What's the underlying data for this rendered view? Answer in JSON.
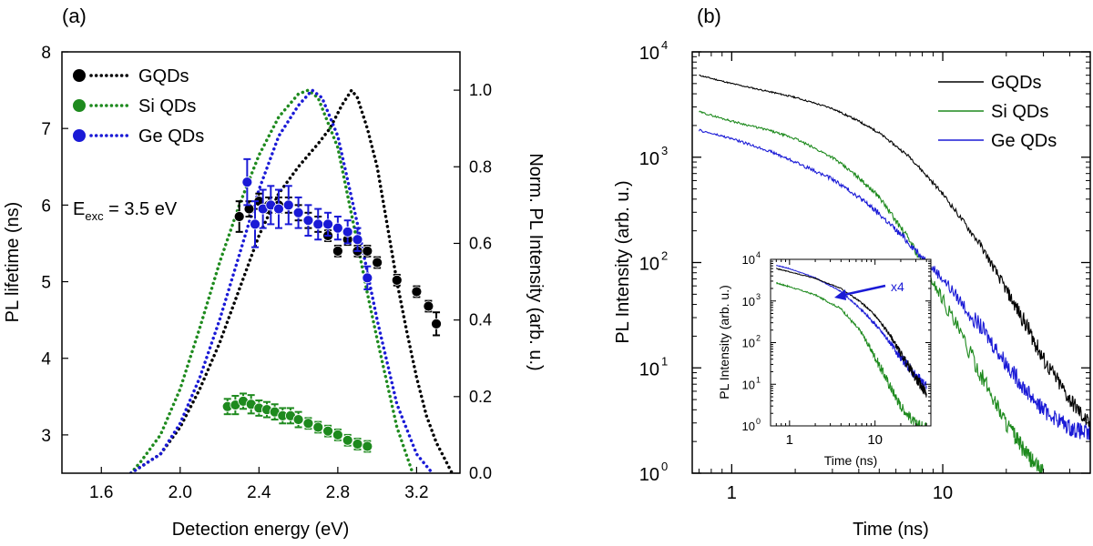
{
  "chart_data": [
    {
      "panel_label": "(a)",
      "type": "scatter",
      "xlabel": "Detection energy (eV)",
      "ylabel": "PL lifetime (ns)",
      "y2label": "Norm. PL Intensity (arb. u.)",
      "xlim": [
        1.4,
        3.42
      ],
      "ylim": [
        2.5,
        8.0
      ],
      "y2lim": [
        0.0,
        1.1
      ],
      "xticks": [
        "1.6",
        "2.0",
        "2.4",
        "2.8",
        "3.2"
      ],
      "yticks": [
        "3",
        "4",
        "5",
        "6",
        "7",
        "8"
      ],
      "y2ticks": [
        "0.0",
        "0.2",
        "0.4",
        "0.6",
        "0.8",
        "1.0"
      ],
      "annotation": {
        "prefix": "E",
        "subscript": "exc",
        "suffix": " = 3.5 eV"
      },
      "legend": [
        "GQDs",
        "Si QDs",
        "Ge QDs"
      ],
      "legend_position": "top-left",
      "colors": {
        "GQDs": "#000000",
        "Si QDs": "#1e8a1e",
        "Ge QDs": "#1a1ad6"
      },
      "series": [
        {
          "name": "GQDs",
          "kind": "lifetime",
          "points": [
            [
              2.3,
              5.85,
              0.2
            ],
            [
              2.35,
              5.95,
              0.1
            ],
            [
              2.4,
              6.05,
              0.1
            ],
            [
              2.45,
              6.0,
              0.1
            ],
            [
              2.5,
              6.0,
              0.1
            ],
            [
              2.55,
              6.0,
              0.1
            ],
            [
              2.6,
              5.9,
              0.1
            ],
            [
              2.65,
              5.8,
              0.1
            ],
            [
              2.7,
              5.75,
              0.1
            ],
            [
              2.75,
              5.6,
              0.07
            ],
            [
              2.8,
              5.4,
              0.07
            ],
            [
              2.85,
              5.55,
              0.07
            ],
            [
              2.9,
              5.4,
              0.07
            ],
            [
              2.95,
              5.4,
              0.07
            ],
            [
              3.0,
              5.25,
              0.07
            ],
            [
              3.1,
              5.02,
              0.07
            ],
            [
              3.2,
              4.87,
              0.07
            ],
            [
              3.26,
              4.68,
              0.07
            ],
            [
              3.3,
              4.45,
              0.15
            ]
          ]
        },
        {
          "name": "Si QDs",
          "kind": "lifetime",
          "points": [
            [
              2.24,
              3.37,
              0.1
            ],
            [
              2.28,
              3.39,
              0.12
            ],
            [
              2.32,
              3.44,
              0.1
            ],
            [
              2.36,
              3.4,
              0.12
            ],
            [
              2.4,
              3.35,
              0.1
            ],
            [
              2.44,
              3.33,
              0.1
            ],
            [
              2.48,
              3.3,
              0.1
            ],
            [
              2.52,
              3.25,
              0.1
            ],
            [
              2.56,
              3.25,
              0.1
            ],
            [
              2.6,
              3.2,
              0.1
            ],
            [
              2.65,
              3.15,
              0.07
            ],
            [
              2.7,
              3.1,
              0.07
            ],
            [
              2.75,
              3.05,
              0.07
            ],
            [
              2.8,
              3.0,
              0.07
            ],
            [
              2.85,
              2.93,
              0.07
            ],
            [
              2.9,
              2.88,
              0.07
            ],
            [
              2.95,
              2.85,
              0.07
            ]
          ]
        },
        {
          "name": "Ge QDs",
          "kind": "lifetime",
          "points": [
            [
              2.34,
              6.3,
              0.3
            ],
            [
              2.38,
              5.75,
              0.3
            ],
            [
              2.42,
              5.95,
              0.25
            ],
            [
              2.46,
              6.0,
              0.25
            ],
            [
              2.5,
              5.95,
              0.25
            ],
            [
              2.55,
              6.0,
              0.25
            ],
            [
              2.6,
              5.9,
              0.2
            ],
            [
              2.65,
              5.8,
              0.2
            ],
            [
              2.7,
              5.75,
              0.2
            ],
            [
              2.75,
              5.75,
              0.15
            ],
            [
              2.8,
              5.7,
              0.15
            ],
            [
              2.85,
              5.65,
              0.15
            ],
            [
              2.9,
              5.55,
              0.15
            ],
            [
              2.95,
              5.05,
              0.15
            ]
          ]
        },
        {
          "name": "GQDs",
          "kind": "norm_pl_dotted",
          "x": [
            1.75,
            1.9,
            2.0,
            2.1,
            2.2,
            2.3,
            2.4,
            2.5,
            2.6,
            2.7,
            2.76,
            2.82,
            2.87,
            2.9,
            2.95,
            3.0,
            3.05,
            3.1,
            3.15,
            3.2,
            3.25,
            3.3,
            3.35,
            3.38
          ],
          "y": [
            0.0,
            0.05,
            0.12,
            0.22,
            0.34,
            0.48,
            0.62,
            0.73,
            0.8,
            0.86,
            0.9,
            0.96,
            1.0,
            0.98,
            0.9,
            0.8,
            0.65,
            0.5,
            0.37,
            0.25,
            0.15,
            0.08,
            0.03,
            0.0
          ]
        },
        {
          "name": "Si QDs",
          "kind": "norm_pl_dotted",
          "x": [
            1.75,
            1.8,
            1.9,
            2.0,
            2.1,
            2.2,
            2.3,
            2.4,
            2.5,
            2.6,
            2.65,
            2.7,
            2.8,
            2.9,
            2.95,
            3.0,
            3.1,
            3.18
          ],
          "y": [
            0.0,
            0.03,
            0.1,
            0.22,
            0.38,
            0.55,
            0.7,
            0.83,
            0.93,
            0.99,
            1.0,
            0.98,
            0.85,
            0.6,
            0.47,
            0.35,
            0.12,
            0.0
          ]
        },
        {
          "name": "Ge QDs",
          "kind": "norm_pl_dotted",
          "x": [
            1.75,
            1.9,
            2.0,
            2.1,
            2.2,
            2.3,
            2.4,
            2.5,
            2.6,
            2.67,
            2.72,
            2.8,
            2.9,
            3.0,
            3.1,
            3.2,
            3.28
          ],
          "y": [
            0.0,
            0.05,
            0.13,
            0.25,
            0.4,
            0.57,
            0.74,
            0.88,
            0.96,
            1.0,
            0.98,
            0.88,
            0.65,
            0.4,
            0.18,
            0.05,
            0.0
          ]
        }
      ]
    },
    {
      "panel_label": "(b)",
      "type": "line",
      "xlabel": "Time (ns)",
      "ylabel": "PL Intensity (arb. u.)",
      "xscale": "log",
      "yscale": "log",
      "xlim": [
        0.65,
        50
      ],
      "ylim": [
        1,
        10000
      ],
      "xticks": [
        {
          "v": 1,
          "l": "1"
        },
        {
          "v": 10,
          "l": "10"
        }
      ],
      "yticks": [
        {
          "v": 1,
          "b": "10",
          "e": "0"
        },
        {
          "v": 10,
          "b": "10",
          "e": "1"
        },
        {
          "v": 100,
          "b": "10",
          "e": "2"
        },
        {
          "v": 1000,
          "b": "10",
          "e": "3"
        },
        {
          "v": 10000,
          "b": "10",
          "e": "4"
        }
      ],
      "legend": [
        "GQDs",
        "Si QDs",
        "Ge QDs"
      ],
      "legend_position": "top-right",
      "colors": {
        "GQDs": "#000000",
        "Si QDs": "#1e8a1e",
        "Ge QDs": "#1a1ad6"
      },
      "series": [
        {
          "name": "GQDs",
          "x": [
            0.7,
            1,
            1.5,
            2,
            3,
            4,
            5,
            7,
            10,
            15,
            20,
            25,
            30,
            40,
            50
          ],
          "y": [
            6000,
            5000,
            4200,
            3700,
            2900,
            2200,
            1700,
            1000,
            450,
            150,
            55,
            25,
            12,
            5,
            2.8
          ]
        },
        {
          "name": "Si QDs",
          "x": [
            0.7,
            1,
            1.5,
            2,
            3,
            4,
            5,
            7,
            10,
            15,
            20,
            25,
            30
          ],
          "y": [
            2700,
            2200,
            1800,
            1500,
            1000,
            640,
            420,
            160,
            45,
            9,
            3,
            1.5,
            1
          ]
        },
        {
          "name": "Ge QDs",
          "x": [
            0.7,
            1,
            1.5,
            2,
            3,
            4,
            5,
            7,
            10,
            15,
            20,
            25,
            30,
            40,
            50
          ],
          "y": [
            1800,
            1500,
            1150,
            900,
            620,
            420,
            290,
            150,
            70,
            25,
            11,
            6,
            4,
            2.7,
            2.3
          ]
        }
      ],
      "inset": {
        "xlabel": "Time (ns)",
        "ylabel": "PL Intensity (arb. u.)",
        "xlim": [
          0.6,
          45
        ],
        "ylim": [
          1,
          10000
        ],
        "xticks": [
          {
            "v": 1,
            "l": "1"
          },
          {
            "v": 10,
            "l": "10"
          }
        ],
        "yticks": [
          {
            "v": 1,
            "b": "10",
            "e": "0"
          },
          {
            "v": 10,
            "b": "10",
            "e": "1"
          },
          {
            "v": 100,
            "b": "10",
            "e": "2"
          },
          {
            "v": 1000,
            "b": "10",
            "e": "3"
          },
          {
            "v": 10000,
            "b": "10",
            "e": "4"
          }
        ],
        "annotation": "x4",
        "series": [
          {
            "name": "GQDs",
            "x": [
              0.7,
              1,
              2,
              4,
              7,
              10,
              15,
              20,
              30,
              40
            ],
            "y": [
              6000,
              5000,
              3500,
              2000,
              900,
              450,
              150,
              55,
              14,
              6
            ]
          },
          {
            "name": "Si QDs",
            "x": [
              0.7,
              1,
              2,
              4,
              7,
              10,
              15,
              20,
              30,
              40
            ],
            "y": [
              2700,
              2200,
              1400,
              650,
              170,
              45,
              9,
              3,
              1.1,
              1
            ]
          },
          {
            "name": "Ge QDs",
            "x": [
              0.7,
              1,
              2,
              4,
              7,
              10,
              15,
              20,
              30,
              40
            ],
            "y": [
              7200,
              6000,
              3600,
              1700,
              600,
              280,
              100,
              44,
              16,
              9
            ]
          }
        ]
      }
    }
  ]
}
